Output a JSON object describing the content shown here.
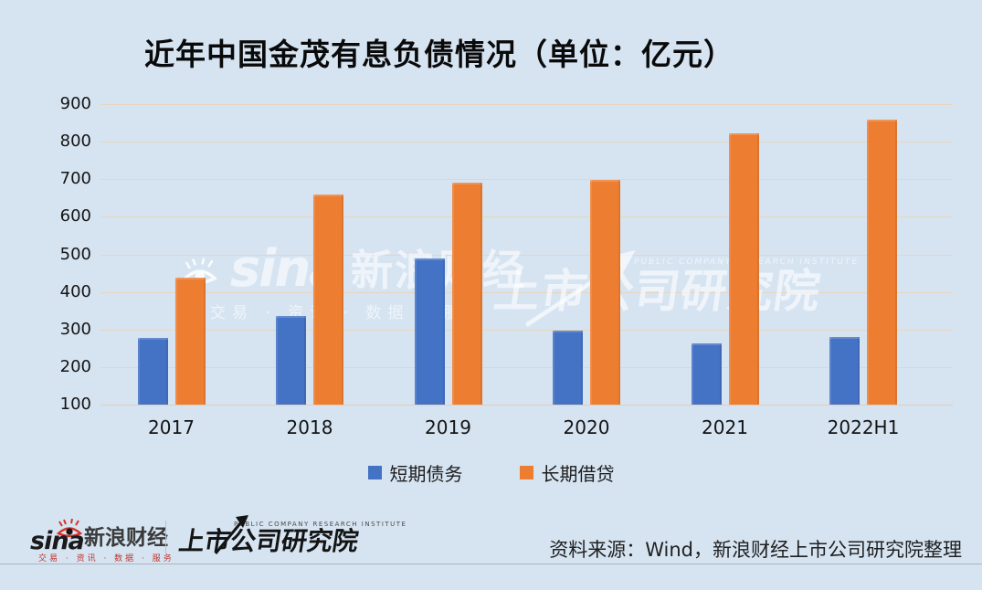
{
  "title": "近年中国金茂有息负债情况（单位：亿元）",
  "chart_data": {
    "type": "bar",
    "title": "近年中国金茂有息负债情况（单位：亿元）",
    "categories": [
      "2017",
      "2018",
      "2019",
      "2020",
      "2021",
      "2022H1"
    ],
    "series": [
      {
        "name": "短期债务",
        "color": "#4472c4",
        "values": [
          278,
          336,
          490,
          296,
          263,
          279
        ]
      },
      {
        "name": "长期借贷",
        "color": "#ed7d31",
        "values": [
          437,
          659,
          692,
          697,
          821,
          859
        ]
      }
    ],
    "xlabel": "",
    "ylabel": "",
    "ylim": [
      100,
      900
    ],
    "yticks": [
      100,
      200,
      300,
      400,
      500,
      600,
      700,
      800,
      900
    ],
    "grid": "horizontal",
    "legend_position": "bottom"
  },
  "watermarks": {
    "sina_text": "sina",
    "sina_cn": "新浪财经",
    "sina_sub": "交易 · 资讯 · 数据 · 服务",
    "pcri_en": "PUBLIC COMPANY RESEARCH INSTITUTE",
    "pcri_cn": "上市公司研究院"
  },
  "footer": {
    "sina_logo_text": "sina",
    "sina_logo_cn": "新浪财经",
    "sina_logo_sub": "交易 · 资讯 · 数据 · 服务",
    "pcri_en": "PUBLIC COMPANY RESEARCH INSTITUTE",
    "pcri_cn": "上市公司研究院",
    "source": "资料来源：Wind，新浪财经上市公司研究院整理"
  },
  "colors": {
    "background": "#d6e4f2",
    "gridline": "#e7d5bd",
    "bar_blue": "#4472c4",
    "bar_orange": "#ed7d31",
    "footer_rule": "#a9b2ba",
    "sina_red": "#c2342b"
  }
}
